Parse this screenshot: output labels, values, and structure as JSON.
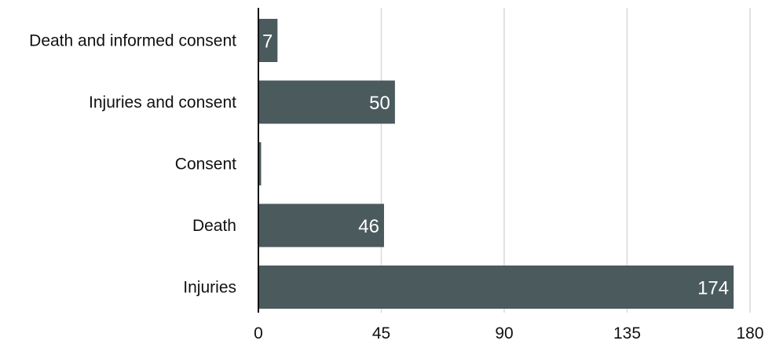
{
  "chart_data": {
    "type": "bar",
    "orientation": "horizontal",
    "categories": [
      "Death and informed consent",
      "Injuries and consent",
      "Consent",
      "Death",
      "Injuries"
    ],
    "values": [
      7,
      50,
      1,
      46,
      174
    ],
    "data_labels": [
      "7",
      "50",
      "",
      "46",
      "174"
    ],
    "xlim": [
      0,
      180
    ],
    "xticks": [
      0,
      45,
      90,
      135,
      180
    ],
    "title": "",
    "xlabel": "",
    "ylabel": "",
    "grid": "vertical",
    "legend": "none",
    "bar_color": "#4a5a5d",
    "label_color": "#ffffff"
  }
}
